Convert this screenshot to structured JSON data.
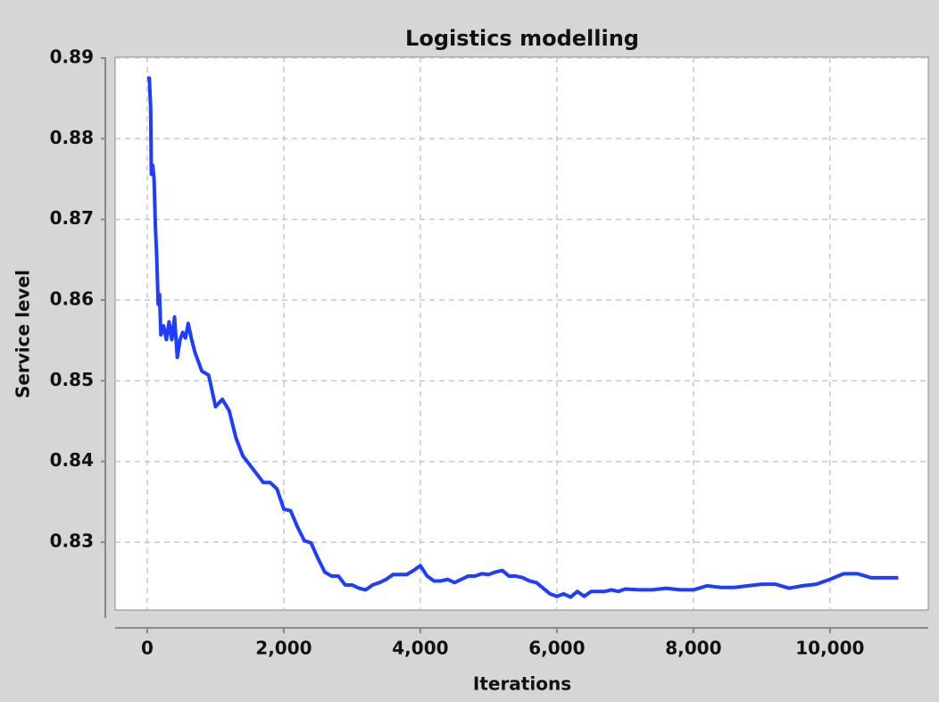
{
  "chart_data": {
    "type": "line",
    "title": "Logistics modelling",
    "x_label": "Iterations",
    "y_label": "Service level",
    "x": [
      0,
      30,
      50,
      60,
      80,
      100,
      120,
      140,
      160,
      180,
      200,
      240,
      280,
      320,
      360,
      400,
      440,
      480,
      520,
      560,
      600,
      650,
      700,
      800,
      900,
      1000,
      1100,
      1200,
      1300,
      1400,
      1500,
      1600,
      1700,
      1800,
      1900,
      2000,
      2100,
      2200,
      2300,
      2400,
      2500,
      2600,
      2700,
      2800,
      2900,
      3000,
      3100,
      3200,
      3300,
      3400,
      3500,
      3600,
      3700,
      3800,
      3900,
      4000,
      4100,
      4200,
      4300,
      4400,
      4500,
      4600,
      4700,
      4800,
      4900,
      5000,
      5100,
      5200,
      5300,
      5400,
      5500,
      5600,
      5700,
      5800,
      5900,
      6000,
      6100,
      6200,
      6300,
      6400,
      6500,
      6600,
      6700,
      6800,
      6900,
      7000,
      7200,
      7400,
      7600,
      7800,
      8000,
      8200,
      8400,
      8600,
      8800,
      9000,
      9200,
      9400,
      9600,
      9800,
      10000,
      10200,
      10400,
      10600,
      10800,
      11000
    ],
    "series": [
      {
        "color": "#1f3dff",
        "values": [
          0.8875,
          0.8875,
          0.8839,
          0.8756,
          0.8767,
          0.875,
          0.869,
          0.8651,
          0.8595,
          0.8607,
          0.8557,
          0.8568,
          0.8551,
          0.8573,
          0.8551,
          0.8579,
          0.8529,
          0.8551,
          0.856,
          0.8553,
          0.8571,
          0.8551,
          0.8535,
          0.8512,
          0.8507,
          0.8468,
          0.8477,
          0.8463,
          0.8429,
          0.8407,
          0.8396,
          0.8385,
          0.8374,
          0.8374,
          0.8366,
          0.8341,
          0.8339,
          0.8319,
          0.8302,
          0.8299,
          0.828,
          0.8263,
          0.8258,
          0.8258,
          0.8247,
          0.8247,
          0.8243,
          0.8241,
          0.8247,
          0.825,
          0.8254,
          0.826,
          0.826,
          0.826,
          0.8265,
          0.8271,
          0.8258,
          0.8252,
          0.8252,
          0.8254,
          0.825,
          0.8254,
          0.8258,
          0.8258,
          0.8261,
          0.826,
          0.8263,
          0.8265,
          0.8258,
          0.8258,
          0.8256,
          0.8252,
          0.825,
          0.8243,
          0.8236,
          0.8233,
          0.8236,
          0.8232,
          0.8239,
          0.8233,
          0.8239,
          0.8239,
          0.8239,
          0.8241,
          0.8239,
          0.8242,
          0.8241,
          0.8241,
          0.8243,
          0.8241,
          0.8241,
          0.8246,
          0.8244,
          0.8244,
          0.8246,
          0.8248,
          0.8248,
          0.8243,
          0.8246,
          0.8248,
          0.8254,
          0.8261,
          0.8261,
          0.8256,
          0.8256,
          0.8256
        ]
      }
    ],
    "xlim": [
      -470,
      11440
    ],
    "ylim": [
      0.8216,
      0.8901
    ],
    "xticks": [
      0,
      {
        "value": 2000,
        "label": "2,000"
      },
      {
        "value": 4000,
        "label": "4,000"
      },
      {
        "value": 6000,
        "label": "6,000"
      },
      {
        "value": 8000,
        "label": "8,000"
      },
      {
        "value": 10000,
        "label": "10,000"
      }
    ],
    "yticks": [
      0.83,
      0.84,
      0.85,
      0.86,
      0.87,
      0.88,
      0.89
    ],
    "grid": true
  }
}
